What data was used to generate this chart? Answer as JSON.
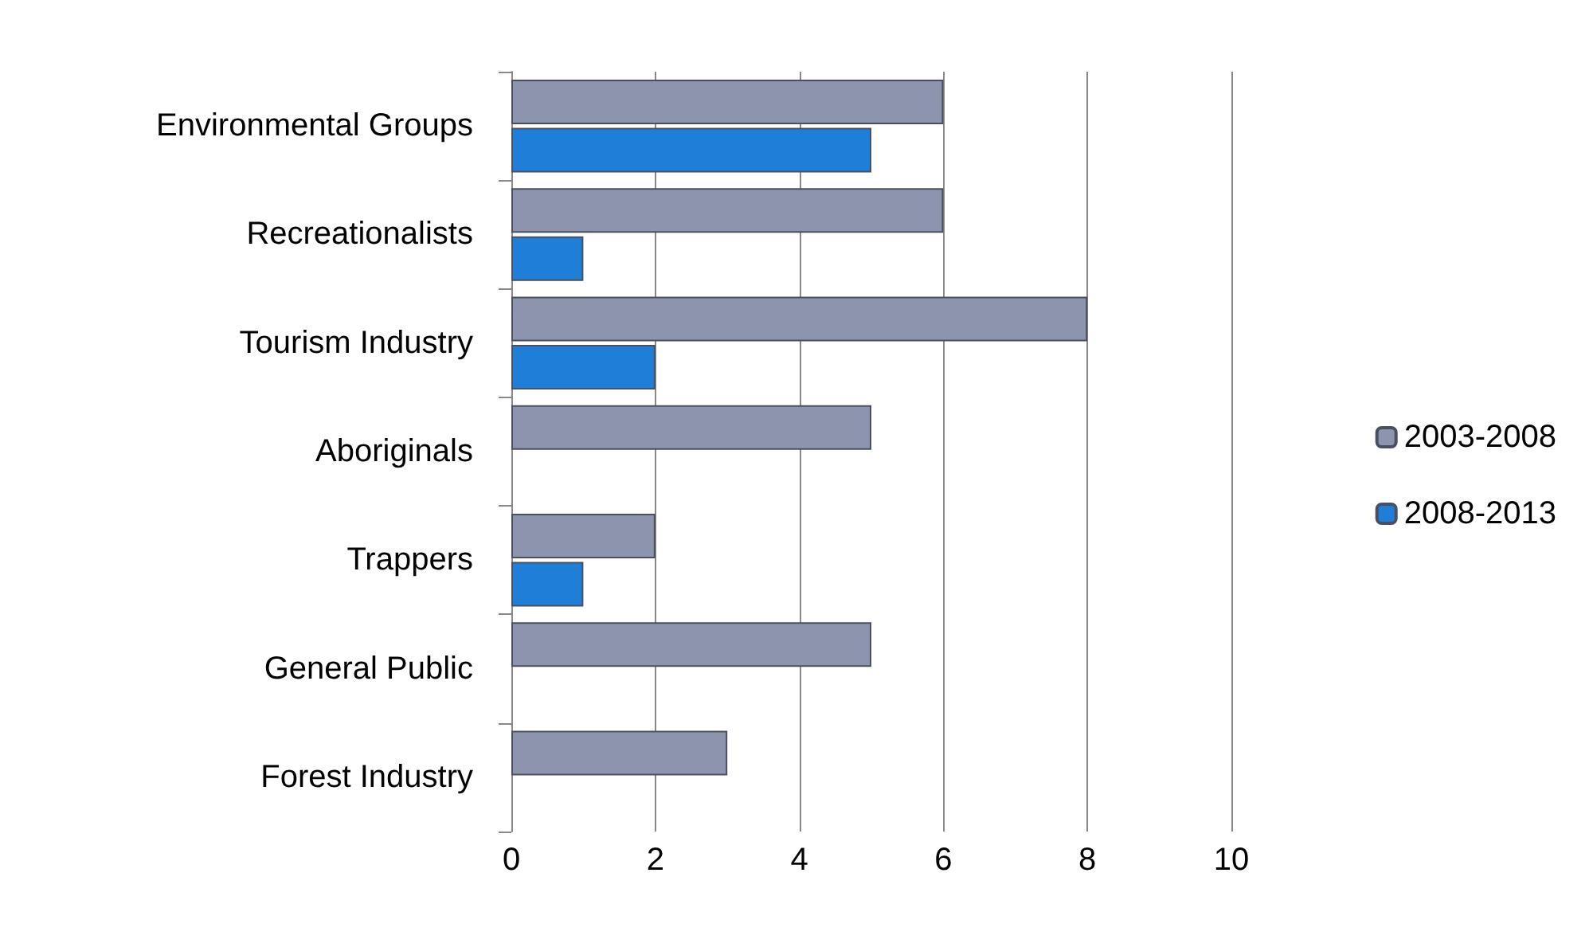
{
  "chart_data": {
    "type": "bar",
    "orientation": "horizontal",
    "categories": [
      "Environmental Groups",
      "Recreationalists",
      "Tourism Industry",
      "Aboriginals",
      "Trappers",
      "General Public",
      "Forest Industry"
    ],
    "series": [
      {
        "name": "2003-2008",
        "color": "#8c95ad",
        "values": [
          6,
          6,
          8,
          5,
          2,
          5,
          3
        ]
      },
      {
        "name": "2008-2013",
        "color": "#1f7fd8",
        "values": [
          5,
          1,
          2,
          null,
          1,
          null,
          null
        ]
      }
    ],
    "xlim": [
      0,
      10
    ],
    "xticks": [
      0,
      2,
      4,
      6,
      8,
      10
    ],
    "grid": "x",
    "legend": "right"
  }
}
